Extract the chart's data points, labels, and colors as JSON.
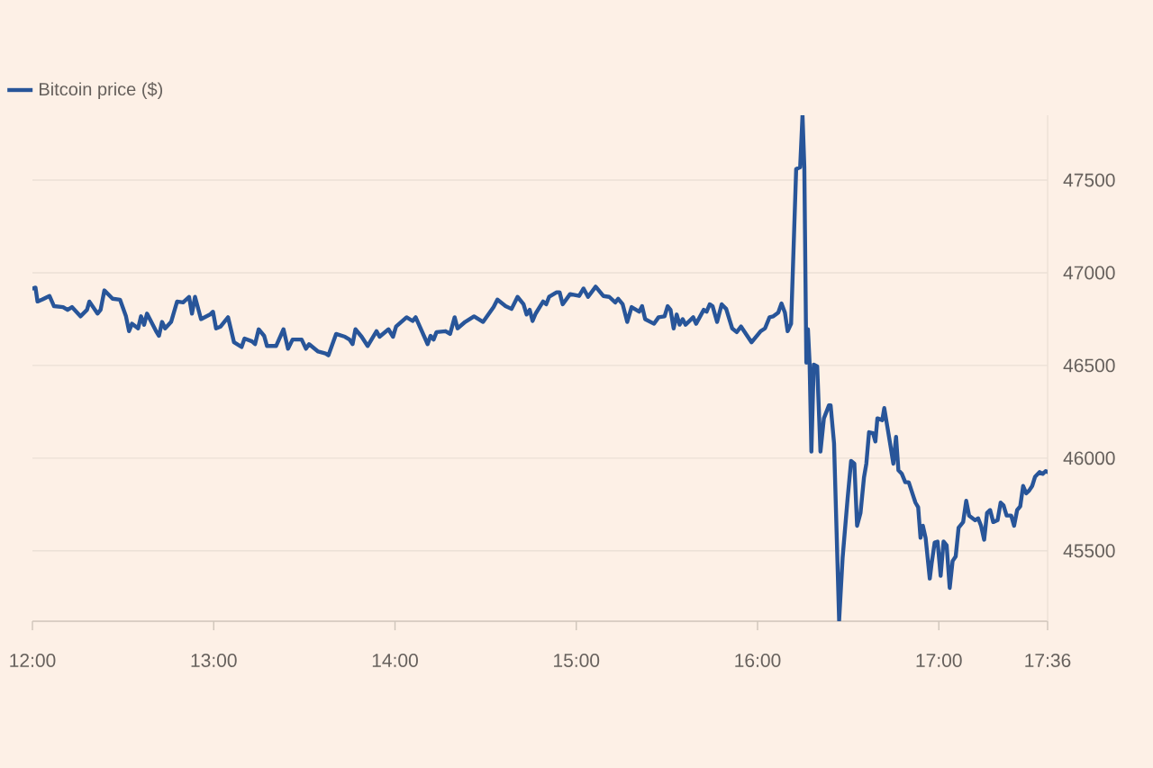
{
  "chart_data": {
    "type": "line",
    "x": [
      12.0,
      12.017,
      12.028,
      12.053,
      12.094,
      12.119,
      12.169,
      12.194,
      12.218,
      12.265,
      12.301,
      12.314,
      12.359,
      12.376,
      12.397,
      12.442,
      12.483,
      12.516,
      12.533,
      12.549,
      12.583,
      12.599,
      12.616,
      12.632,
      12.682,
      12.698,
      12.715,
      12.732,
      12.765,
      12.798,
      12.831,
      12.864,
      12.88,
      12.897,
      12.93,
      12.98,
      12.996,
      13.013,
      13.038,
      13.079,
      13.112,
      13.154,
      13.17,
      13.211,
      13.228,
      13.248,
      13.278,
      13.294,
      13.344,
      13.385,
      13.41,
      13.435,
      13.485,
      13.509,
      13.526,
      13.576,
      13.617,
      13.633,
      13.675,
      13.724,
      13.749,
      13.766,
      13.782,
      13.816,
      13.849,
      13.898,
      13.915,
      13.964,
      13.989,
      14.006,
      14.064,
      14.097,
      14.114,
      14.18,
      14.196,
      14.213,
      14.229,
      14.279,
      14.304,
      14.329,
      14.345,
      14.387,
      14.436,
      14.486,
      14.544,
      14.565,
      14.61,
      14.643,
      14.676,
      14.709,
      14.726,
      14.743,
      14.759,
      14.776,
      14.817,
      14.834,
      14.85,
      14.892,
      14.908,
      14.925,
      14.966,
      15.016,
      15.04,
      15.065,
      15.107,
      15.149,
      15.182,
      15.215,
      15.231,
      15.256,
      15.281,
      15.305,
      15.347,
      15.363,
      15.38,
      15.429,
      15.454,
      15.487,
      15.504,
      15.52,
      15.537,
      15.554,
      15.57,
      15.587,
      15.603,
      15.645,
      15.661,
      15.703,
      15.719,
      15.736,
      15.752,
      15.777,
      15.802,
      15.827,
      15.86,
      15.885,
      15.909,
      15.967,
      16.017,
      16.041,
      16.066,
      16.087,
      16.114,
      16.132,
      16.151,
      16.166,
      16.185,
      16.213,
      16.235,
      16.248,
      16.258,
      16.269,
      16.278,
      16.287,
      16.297,
      16.31,
      16.329,
      16.347,
      16.366,
      16.394,
      16.403,
      16.422,
      16.45,
      16.469,
      16.497,
      16.516,
      16.534,
      16.549,
      16.568,
      16.587,
      16.6,
      16.615,
      16.637,
      16.65,
      16.661,
      16.688,
      16.699,
      16.731,
      16.749,
      16.764,
      16.777,
      16.796,
      16.815,
      16.834,
      16.871,
      16.886,
      16.899,
      16.912,
      16.927,
      16.95,
      16.96,
      16.977,
      16.993,
      17.01,
      17.026,
      17.043,
      17.06,
      17.076,
      17.093,
      17.109,
      17.134,
      17.151,
      17.167,
      17.2,
      17.217,
      17.233,
      17.25,
      17.266,
      17.283,
      17.3,
      17.324,
      17.341,
      17.357,
      17.374,
      17.399,
      17.415,
      17.432,
      17.449,
      17.465,
      17.482,
      17.498,
      17.515,
      17.531,
      17.556,
      17.573,
      17.589,
      17.6
    ],
    "series": [
      {
        "name": "Bitcoin price ($)",
        "color": "#285599",
        "values": [
          46915,
          46920,
          46845,
          46855,
          46875,
          46820,
          46815,
          46800,
          46815,
          46765,
          46800,
          46845,
          46780,
          46800,
          46905,
          46860,
          46855,
          46765,
          46685,
          46725,
          46700,
          46765,
          46720,
          46780,
          46685,
          46660,
          46735,
          46700,
          46735,
          46845,
          46840,
          46870,
          46780,
          46870,
          46750,
          46775,
          46790,
          46700,
          46710,
          46760,
          46625,
          46600,
          46645,
          46630,
          46615,
          46695,
          46660,
          46605,
          46605,
          46695,
          46590,
          46640,
          46640,
          46590,
          46615,
          46575,
          46565,
          46555,
          46670,
          46655,
          46640,
          46615,
          46695,
          46655,
          46605,
          46685,
          46655,
          46695,
          46655,
          46710,
          46760,
          46740,
          46760,
          46615,
          46660,
          46640,
          46680,
          46685,
          46670,
          46760,
          46700,
          46735,
          46765,
          46735,
          46815,
          46855,
          46820,
          46805,
          46870,
          46830,
          46775,
          46800,
          46740,
          46780,
          46845,
          46830,
          46870,
          46895,
          46895,
          46830,
          46885,
          46875,
          46915,
          46870,
          46925,
          46875,
          46870,
          46840,
          46860,
          46830,
          46735,
          46815,
          46790,
          46820,
          46750,
          46725,
          46760,
          46765,
          46820,
          46800,
          46700,
          46775,
          46720,
          46750,
          46720,
          46760,
          46725,
          46800,
          46790,
          46830,
          46820,
          46735,
          46830,
          46805,
          46700,
          46680,
          46710,
          46625,
          46685,
          46700,
          46760,
          46765,
          46785,
          46835,
          46785,
          46685,
          46725,
          47560,
          47570,
          47850,
          47570,
          46515,
          46695,
          46515,
          46035,
          46505,
          46495,
          46035,
          46215,
          46285,
          46285,
          46080,
          45125,
          45460,
          45785,
          45985,
          45970,
          45635,
          45705,
          45895,
          45970,
          46140,
          46135,
          46090,
          46215,
          46205,
          46270,
          46080,
          45970,
          46115,
          45935,
          45915,
          45870,
          45870,
          45760,
          45735,
          45570,
          45635,
          45570,
          45350,
          45430,
          45545,
          45550,
          45365,
          45550,
          45530,
          45300,
          45445,
          45470,
          45625,
          45655,
          45770,
          45690,
          45665,
          45675,
          45635,
          45560,
          45705,
          45720,
          45655,
          45665,
          45760,
          45745,
          45690,
          45690,
          45635,
          45720,
          45740,
          45850,
          45810,
          45825,
          45850,
          45900,
          45925,
          45915,
          45930,
          45925
        ]
      }
    ],
    "xlim": [
      12,
      17.6
    ],
    "ylim": [
      45120,
      47850
    ],
    "xticks": [
      {
        "value": 12,
        "label": "12:00"
      },
      {
        "value": 13,
        "label": "13:00"
      },
      {
        "value": 14,
        "label": "14:00"
      },
      {
        "value": 15,
        "label": "15:00"
      },
      {
        "value": 16,
        "label": "16:00"
      },
      {
        "value": 17,
        "label": "17:00"
      },
      {
        "value": 17.6,
        "label": "17:36"
      }
    ],
    "yticks": [
      45500,
      46000,
      46500,
      47000,
      47500
    ],
    "grid": "y",
    "legend": "top left",
    "line_style": "solid"
  }
}
